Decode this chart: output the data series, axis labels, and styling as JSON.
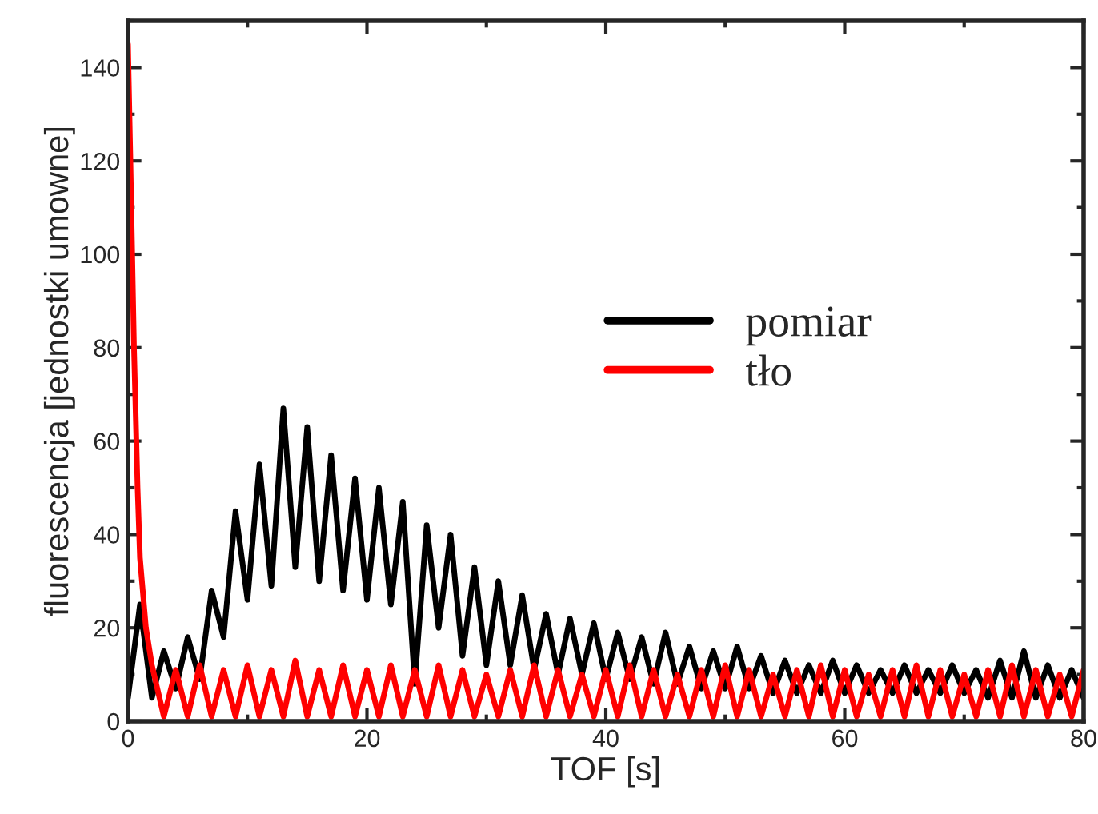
{
  "chart_data": {
    "type": "line",
    "xlabel": "TOF [s]",
    "ylabel": "fluorescencja [jednostki umowne]",
    "xlim": [
      0,
      80
    ],
    "ylim": [
      0,
      150
    ],
    "xticks": [
      0,
      20,
      40,
      60,
      80
    ],
    "yticks": [
      0,
      20,
      40,
      60,
      80,
      100,
      120,
      140
    ],
    "legend": "right",
    "grid": false,
    "marker": "none",
    "line_style": "solid",
    "series": [
      {
        "name": "pomiar",
        "color": "#000000",
        "x": [
          0,
          1,
          2,
          3,
          4,
          5,
          6,
          7,
          8,
          9,
          10,
          11,
          12,
          13,
          14,
          15,
          16,
          17,
          18,
          19,
          20,
          21,
          22,
          23,
          24,
          25,
          26,
          27,
          28,
          29,
          30,
          31,
          32,
          33,
          34,
          35,
          36,
          37,
          38,
          39,
          40,
          41,
          42,
          43,
          44,
          45,
          46,
          47,
          48,
          49,
          50,
          51,
          52,
          53,
          54,
          55,
          56,
          57,
          58,
          59,
          60,
          61,
          62,
          63,
          64,
          65,
          66,
          67,
          68,
          69,
          70,
          71,
          72,
          73,
          74,
          75,
          76,
          77,
          78,
          79,
          80
        ],
        "values": [
          5,
          25,
          5,
          15,
          7,
          18,
          9,
          28,
          18,
          45,
          26,
          55,
          29,
          67,
          33,
          63,
          30,
          57,
          28,
          52,
          26,
          50,
          25,
          47,
          8,
          42,
          20,
          40,
          14,
          33,
          12,
          30,
          12,
          27,
          11,
          23,
          10,
          22,
          10,
          21,
          9,
          19,
          9,
          18,
          8,
          19,
          8,
          16,
          7,
          15,
          7,
          16,
          7,
          14,
          6,
          13,
          6,
          12,
          6,
          13,
          6,
          12,
          6,
          11,
          6,
          12,
          6,
          11,
          6,
          12,
          6,
          11,
          5,
          13,
          5,
          15,
          5,
          12,
          5,
          11,
          5
        ]
      },
      {
        "name": "tło",
        "color": "#ff0000",
        "x": [
          0,
          0.2,
          0.5,
          0.8,
          1,
          1.5,
          2,
          3,
          4,
          5,
          6,
          7,
          8,
          9,
          10,
          11,
          12,
          13,
          14,
          15,
          16,
          17,
          18,
          19,
          20,
          21,
          22,
          23,
          24,
          25,
          26,
          27,
          28,
          29,
          30,
          31,
          32,
          33,
          34,
          35,
          36,
          37,
          38,
          39,
          40,
          41,
          42,
          43,
          44,
          45,
          46,
          47,
          48,
          49,
          50,
          51,
          52,
          53,
          54,
          55,
          56,
          57,
          58,
          59,
          60,
          61,
          62,
          63,
          64,
          65,
          66,
          67,
          68,
          69,
          70,
          71,
          72,
          73,
          74,
          75,
          76,
          77,
          78,
          79,
          80
        ],
        "values": [
          145,
          120,
          80,
          50,
          35,
          20,
          12,
          1,
          11,
          1,
          12,
          1,
          11,
          1,
          12,
          1,
          11,
          1,
          13,
          1,
          11,
          1,
          12,
          1,
          11,
          1,
          12,
          1,
          11,
          1,
          12,
          1,
          11,
          1,
          10,
          1,
          11,
          1,
          12,
          1,
          11,
          1,
          10,
          1,
          11,
          1,
          12,
          1,
          11,
          1,
          10,
          1,
          11,
          1,
          12,
          1,
          11,
          1,
          10,
          1,
          11,
          1,
          12,
          1,
          11,
          1,
          10,
          1,
          11,
          1,
          12,
          1,
          11,
          1,
          10,
          1,
          11,
          1,
          12,
          1,
          11,
          1,
          10,
          1,
          11
        ]
      }
    ]
  }
}
